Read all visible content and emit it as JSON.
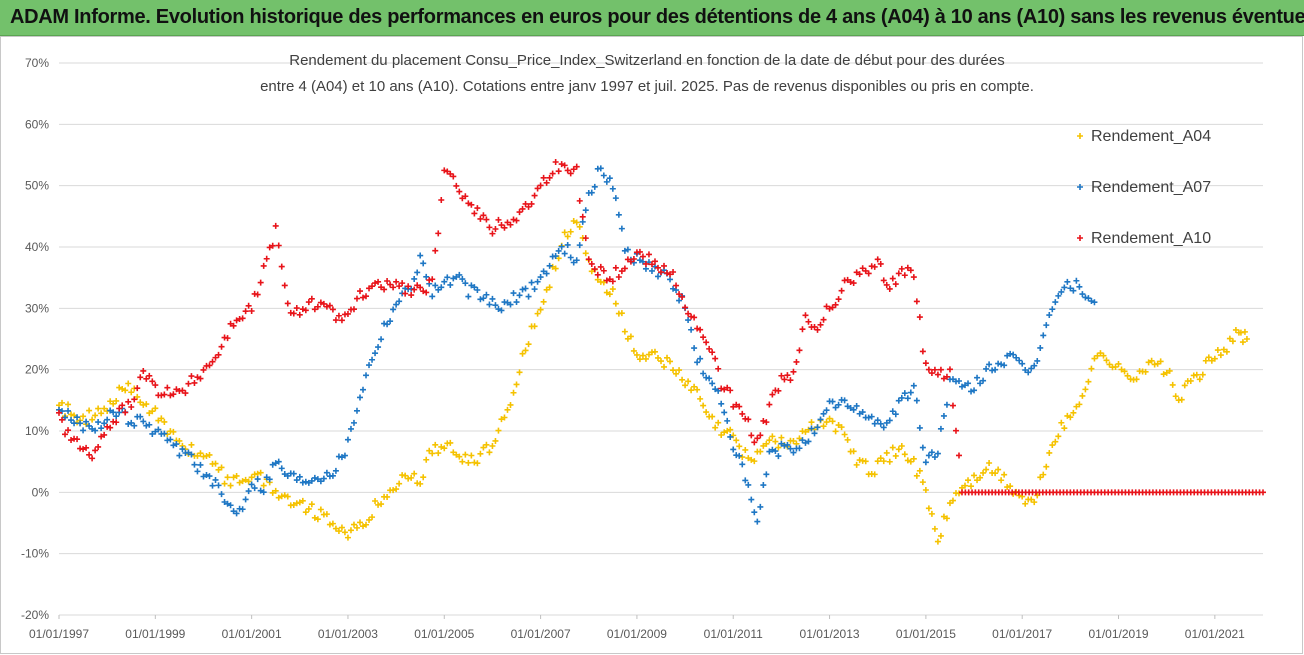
{
  "header": {
    "title": "ADAM Informe. Evolution historique des performances en euros pour des détentions de 4 ans (A04) à 10 ans (A10) sans les revenus éventuels"
  },
  "chart_data": {
    "type": "scatter",
    "title_lines": [
      "Rendement du placement Consu_Price_Index_Switzerland en fonction de la date de début pour des durées",
      "entre 4 (A04) et 10 ans (A10). Cotations entre janv 1997 et juil. 2025. Pas de revenus disponibles ou pris en compte."
    ],
    "xlabel": "",
    "ylabel": "",
    "ylim": [
      -20,
      70
    ],
    "y_ticks": [
      "70%",
      "60%",
      "50%",
      "40%",
      "30%",
      "20%",
      "10%",
      "0%",
      "-10%",
      "-20%"
    ],
    "x_ticks": [
      "01/01/1997",
      "01/01/1999",
      "01/01/2001",
      "01/01/2003",
      "01/01/2005",
      "01/01/2007",
      "01/01/2009",
      "01/01/2011",
      "01/01/2013",
      "01/01/2015",
      "01/01/2017",
      "01/01/2019",
      "01/01/2021"
    ],
    "xlim": [
      "1997-01-01",
      "2022-01-01"
    ],
    "grid": "horizontal",
    "legend": "right",
    "marker": "+",
    "series": [
      {
        "name": "Rendement_A04",
        "color": "#f5c200",
        "points": [
          [
            "1997-01",
            14
          ],
          [
            "1997-04",
            13
          ],
          [
            "1997-07",
            12
          ],
          [
            "1997-10",
            12.5
          ],
          [
            "1998-01",
            13
          ],
          [
            "1998-04",
            16
          ],
          [
            "1998-07",
            17
          ],
          [
            "1998-10",
            15
          ],
          [
            "1999-01",
            13
          ],
          [
            "1999-04",
            10
          ],
          [
            "1999-07",
            8
          ],
          [
            "1999-10",
            7
          ],
          [
            "2000-01",
            6
          ],
          [
            "2000-04",
            4
          ],
          [
            "2000-07",
            2
          ],
          [
            "2000-10",
            2
          ],
          [
            "2001-01",
            3
          ],
          [
            "2001-04",
            2
          ],
          [
            "2001-07",
            0
          ],
          [
            "2001-10",
            -1
          ],
          [
            "2002-01",
            -2
          ],
          [
            "2002-04",
            -3
          ],
          [
            "2002-07",
            -4
          ],
          [
            "2002-10",
            -5
          ],
          [
            "2003-01",
            -6.5
          ],
          [
            "2003-04",
            -6
          ],
          [
            "2003-07",
            -3
          ],
          [
            "2003-10",
            -1
          ],
          [
            "2004-01",
            1
          ],
          [
            "2004-04",
            3
          ],
          [
            "2004-07",
            2
          ],
          [
            "2004-10",
            7
          ],
          [
            "2005-01",
            8
          ],
          [
            "2005-04",
            6
          ],
          [
            "2005-07",
            5
          ],
          [
            "2005-10",
            6
          ],
          [
            "2006-01",
            8
          ],
          [
            "2006-04",
            12
          ],
          [
            "2006-07",
            18
          ],
          [
            "2006-10",
            25
          ],
          [
            "2007-01",
            30
          ],
          [
            "2007-04",
            36
          ],
          [
            "2007-07",
            42
          ],
          [
            "2007-10",
            44
          ],
          [
            "2008-01",
            37
          ],
          [
            "2008-04",
            34
          ],
          [
            "2008-07",
            33
          ],
          [
            "2008-10",
            27
          ],
          [
            "2009-01",
            22
          ],
          [
            "2009-04",
            23
          ],
          [
            "2009-07",
            22
          ],
          [
            "2009-10",
            20
          ],
          [
            "2010-01",
            18
          ],
          [
            "2010-04",
            16
          ],
          [
            "2010-07",
            12
          ],
          [
            "2010-10",
            10
          ],
          [
            "2011-01",
            9
          ],
          [
            "2011-04",
            6
          ],
          [
            "2011-07",
            6
          ],
          [
            "2011-10",
            9
          ],
          [
            "2012-01",
            8
          ],
          [
            "2012-04",
            8
          ],
          [
            "2012-07",
            10
          ],
          [
            "2012-10",
            11
          ],
          [
            "2013-01",
            12
          ],
          [
            "2013-04",
            10
          ],
          [
            "2013-07",
            6
          ],
          [
            "2013-10",
            4
          ],
          [
            "2014-01",
            4
          ],
          [
            "2014-04",
            6
          ],
          [
            "2014-07",
            7
          ],
          [
            "2014-10",
            5
          ],
          [
            "2015-01",
            0
          ],
          [
            "2015-04",
            -8
          ],
          [
            "2015-07",
            -2
          ],
          [
            "2015-10",
            1
          ],
          [
            "2016-01",
            2
          ],
          [
            "2016-04",
            4
          ],
          [
            "2016-07",
            3
          ],
          [
            "2016-10",
            1
          ],
          [
            "2017-01",
            -1
          ],
          [
            "2017-04",
            -2
          ],
          [
            "2017-07",
            5
          ],
          [
            "2017-10",
            10
          ],
          [
            "2018-01",
            12
          ],
          [
            "2018-04",
            16
          ],
          [
            "2018-07",
            22
          ],
          [
            "2018-10",
            22
          ],
          [
            "2019-01",
            20
          ],
          [
            "2019-04",
            19
          ],
          [
            "2019-07",
            20
          ],
          [
            "2019-10",
            21
          ],
          [
            "2020-01",
            20
          ],
          [
            "2020-04",
            15
          ],
          [
            "2020-07",
            18
          ],
          [
            "2020-10",
            20
          ],
          [
            "2021-01",
            22
          ],
          [
            "2021-04",
            24
          ],
          [
            "2021-07",
            26
          ],
          [
            "2021-09",
            25
          ]
        ]
      },
      {
        "name": "Rendement_A07",
        "color": "#1f77c4",
        "points": [
          [
            "1997-01",
            13
          ],
          [
            "1997-04",
            12
          ],
          [
            "1997-07",
            11
          ],
          [
            "1997-10",
            11
          ],
          [
            "1998-01",
            12
          ],
          [
            "1998-04",
            13
          ],
          [
            "1998-07",
            12
          ],
          [
            "1998-10",
            11
          ],
          [
            "1999-01",
            10
          ],
          [
            "1999-04",
            8
          ],
          [
            "1999-07",
            7
          ],
          [
            "1999-10",
            6
          ],
          [
            "2000-01",
            3
          ],
          [
            "2000-04",
            1
          ],
          [
            "2000-07",
            -2
          ],
          [
            "2000-10",
            -3
          ],
          [
            "2001-01",
            2
          ],
          [
            "2001-04",
            1
          ],
          [
            "2001-07",
            5
          ],
          [
            "2001-10",
            3
          ],
          [
            "2002-01",
            2
          ],
          [
            "2002-04",
            2.5
          ],
          [
            "2002-07",
            3
          ],
          [
            "2002-10",
            4
          ],
          [
            "2003-01",
            8
          ],
          [
            "2003-04",
            16
          ],
          [
            "2003-07",
            22
          ],
          [
            "2003-10",
            27
          ],
          [
            "2004-01",
            31
          ],
          [
            "2004-04",
            33
          ],
          [
            "2004-07",
            38
          ],
          [
            "2004-10",
            33
          ],
          [
            "2005-01",
            34
          ],
          [
            "2005-04",
            35
          ],
          [
            "2005-07",
            33
          ],
          [
            "2005-10",
            32
          ],
          [
            "2006-01",
            31
          ],
          [
            "2006-04",
            30
          ],
          [
            "2006-07",
            32
          ],
          [
            "2006-10",
            33
          ],
          [
            "2007-01",
            35
          ],
          [
            "2007-04",
            38
          ],
          [
            "2007-07",
            40
          ],
          [
            "2007-10",
            38
          ],
          [
            "2008-01",
            48
          ],
          [
            "2008-04",
            53
          ],
          [
            "2008-07",
            50
          ],
          [
            "2008-10",
            40
          ],
          [
            "2009-01",
            38
          ],
          [
            "2009-04",
            37
          ],
          [
            "2009-07",
            36
          ],
          [
            "2009-10",
            34
          ],
          [
            "2010-01",
            30
          ],
          [
            "2010-04",
            22
          ],
          [
            "2010-07",
            18
          ],
          [
            "2010-10",
            15
          ],
          [
            "2011-01",
            8
          ],
          [
            "2011-04",
            2
          ],
          [
            "2011-07",
            -5
          ],
          [
            "2011-10",
            6
          ],
          [
            "2012-01",
            7
          ],
          [
            "2012-04",
            7
          ],
          [
            "2012-07",
            9
          ],
          [
            "2012-10",
            10
          ],
          [
            "2013-01",
            14
          ],
          [
            "2013-04",
            15
          ],
          [
            "2013-07",
            13
          ],
          [
            "2013-10",
            13
          ],
          [
            "2014-01",
            11
          ],
          [
            "2014-04",
            12
          ],
          [
            "2014-07",
            15
          ],
          [
            "2014-10",
            17
          ],
          [
            "2015-01",
            5
          ],
          [
            "2015-04",
            7
          ],
          [
            "2015-07",
            18
          ],
          [
            "2015-10",
            17
          ],
          [
            "2016-01",
            17
          ],
          [
            "2016-04",
            20
          ],
          [
            "2016-07",
            21
          ],
          [
            "2016-10",
            22
          ],
          [
            "2017-01",
            20
          ],
          [
            "2017-04",
            20
          ],
          [
            "2017-07",
            28
          ],
          [
            "2017-10",
            32
          ],
          [
            "2018-01",
            34
          ],
          [
            "2018-04",
            33
          ],
          [
            "2018-07",
            31
          ]
        ]
      },
      {
        "name": "Rendement_A10",
        "color": "#e8141a",
        "points": [
          [
            "1997-01",
            12
          ],
          [
            "1997-04",
            9
          ],
          [
            "1997-07",
            7
          ],
          [
            "1997-10",
            6
          ],
          [
            "1998-01",
            10
          ],
          [
            "1998-04",
            13
          ],
          [
            "1998-07",
            15
          ],
          [
            "1998-10",
            20
          ],
          [
            "1999-01",
            17
          ],
          [
            "1999-04",
            16
          ],
          [
            "1999-07",
            16
          ],
          [
            "1999-10",
            18
          ],
          [
            "2000-01",
            20
          ],
          [
            "2000-04",
            22
          ],
          [
            "2000-07",
            26
          ],
          [
            "2000-10",
            29
          ],
          [
            "2001-01",
            30
          ],
          [
            "2001-04",
            36
          ],
          [
            "2001-07",
            43
          ],
          [
            "2001-10",
            30
          ],
          [
            "2002-01",
            30
          ],
          [
            "2002-04",
            31
          ],
          [
            "2002-07",
            30
          ],
          [
            "2002-10",
            29
          ],
          [
            "2003-01",
            28
          ],
          [
            "2003-04",
            32
          ],
          [
            "2003-07",
            33
          ],
          [
            "2003-10",
            34
          ],
          [
            "2004-01",
            34
          ],
          [
            "2004-04",
            33
          ],
          [
            "2004-07",
            33
          ],
          [
            "2004-10",
            34
          ],
          [
            "2005-01",
            52
          ],
          [
            "2005-04",
            50
          ],
          [
            "2005-07",
            48
          ],
          [
            "2005-10",
            45
          ],
          [
            "2006-01",
            43
          ],
          [
            "2006-04",
            44
          ],
          [
            "2006-07",
            45
          ],
          [
            "2006-10",
            47
          ],
          [
            "2007-01",
            50
          ],
          [
            "2007-04",
            53
          ],
          [
            "2007-07",
            53
          ],
          [
            "2007-10",
            52
          ],
          [
            "2008-01",
            38
          ],
          [
            "2008-04",
            36
          ],
          [
            "2008-07",
            35
          ],
          [
            "2008-10",
            37
          ],
          [
            "2009-01",
            39
          ],
          [
            "2009-04",
            38
          ],
          [
            "2009-07",
            37
          ],
          [
            "2009-10",
            36
          ],
          [
            "2010-01",
            30
          ],
          [
            "2010-04",
            27
          ],
          [
            "2010-07",
            24
          ],
          [
            "2010-10",
            18
          ],
          [
            "2011-01",
            15
          ],
          [
            "2011-04",
            12
          ],
          [
            "2011-07",
            8
          ],
          [
            "2011-10",
            14
          ],
          [
            "2012-01",
            18
          ],
          [
            "2012-04",
            19
          ],
          [
            "2012-07",
            28
          ],
          [
            "2012-10",
            27
          ],
          [
            "2013-01",
            30
          ],
          [
            "2013-04",
            33
          ],
          [
            "2013-07",
            35
          ],
          [
            "2013-10",
            36
          ],
          [
            "2014-01",
            37
          ],
          [
            "2014-04",
            34
          ],
          [
            "2014-07",
            36
          ],
          [
            "2014-10",
            36
          ],
          [
            "2015-01",
            20
          ],
          [
            "2015-04",
            19
          ],
          [
            "2015-07",
            20
          ],
          [
            "2015-10",
            0
          ],
          [
            "2017-01",
            0
          ],
          [
            "2019-01",
            0
          ],
          [
            "2021-01",
            0
          ],
          [
            "2022-01",
            0
          ]
        ]
      }
    ]
  }
}
